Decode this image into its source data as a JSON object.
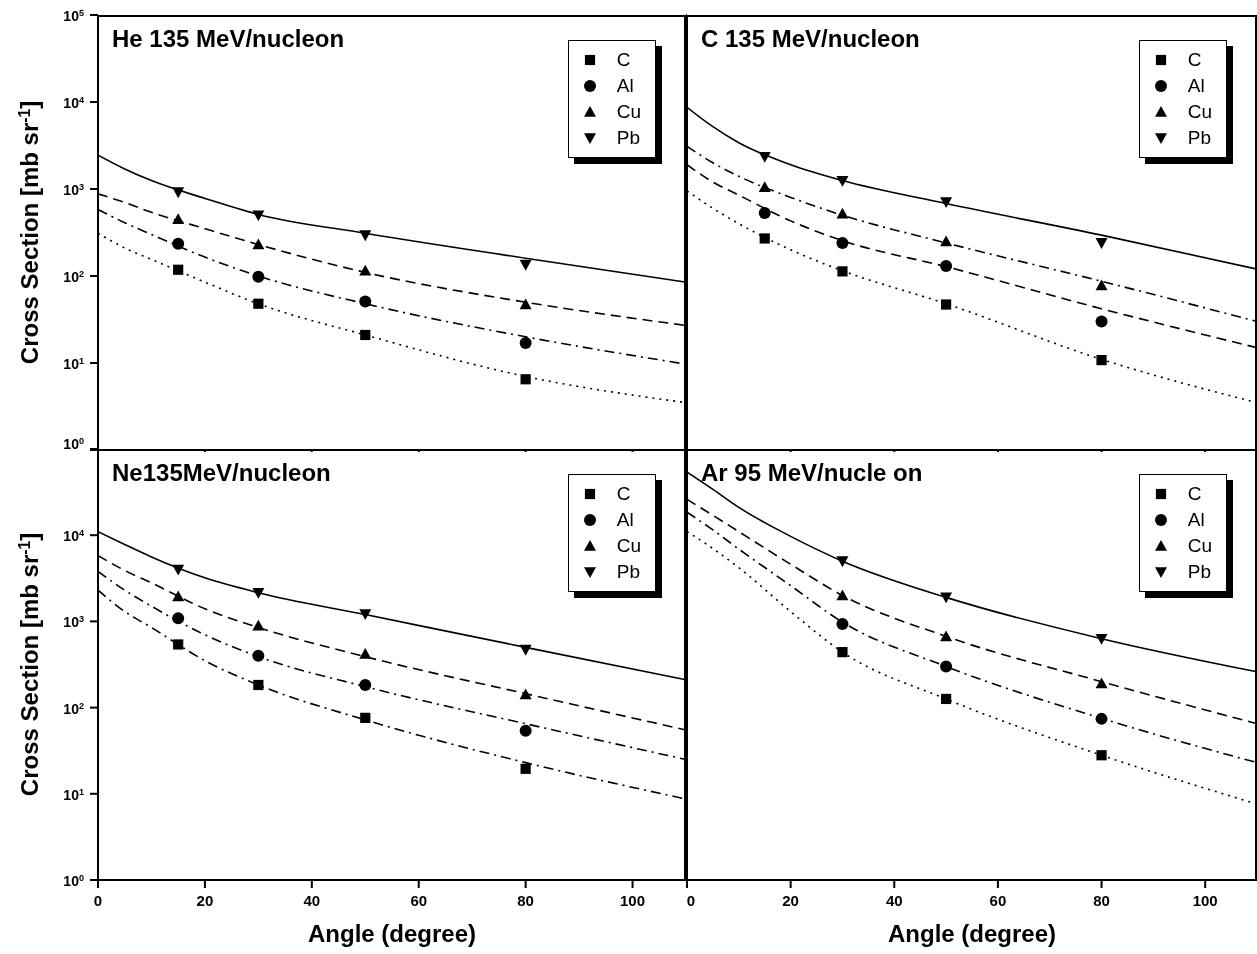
{
  "chart_data": [
    {
      "type": "scatter",
      "title": "He 135 MeV/nucleon",
      "ylabel": "Cross Section [mb sr$^{-1}$]",
      "log": "y",
      "legend": "top right",
      "tick_labels": "y",
      "xlim": [
        0,
        110
      ],
      "xticks": [
        {
          "value": 0,
          "label": null
        },
        {
          "value": 20,
          "label": null
        },
        {
          "value": 40,
          "label": null
        },
        {
          "value": 60,
          "label": null
        },
        {
          "value": 80,
          "label": null
        },
        {
          "value": 100,
          "label": null
        }
      ],
      "ylim": [
        1,
        100000
      ],
      "yticks": [
        {
          "value": 1,
          "label": "10$^{0}$"
        },
        {
          "value": 10,
          "label": "10$^{1}$"
        },
        {
          "value": 100,
          "label": "10$^{2}$"
        },
        {
          "value": 1000,
          "label": "10$^{3}$"
        },
        {
          "value": 10000,
          "label": "10$^{4}$"
        },
        {
          "value": 100000,
          "label": "10$^{5}$"
        }
      ],
      "series": [
        {
          "name": "C",
          "color": "#000000",
          "marker": "square",
          "x": [
            15,
            30,
            50,
            80
          ],
          "values": [
            118,
            48,
            21,
            6.5
          ]
        },
        {
          "name": "Al",
          "color": "#000000",
          "marker": "circle",
          "x": [
            15,
            30,
            50,
            80
          ],
          "values": [
            235,
            98,
            51,
            17
          ]
        },
        {
          "name": "Cu",
          "color": "#000000",
          "marker": "triangle",
          "x": [
            15,
            30,
            50,
            80
          ],
          "values": [
            450,
            230,
            115,
            47
          ]
        },
        {
          "name": "Pb",
          "color": "#000000",
          "marker": "triangle-down",
          "x": [
            15,
            30,
            50,
            80
          ],
          "values": [
            920,
            500,
            295,
            135
          ]
        },
        {
          "type": "line",
          "color": "#000000",
          "marker": "none",
          "line_style": "dotted",
          "x": [
            0,
            5,
            10,
            20,
            30,
            50,
            80,
            110
          ],
          "values": [
            310,
            210,
            155,
            85,
            48,
            21,
            7,
            3.5
          ]
        },
        {
          "type": "line",
          "color": "#000000",
          "marker": "none",
          "line_style": "dashdot",
          "x": [
            0,
            5,
            10,
            20,
            30,
            50,
            80,
            110
          ],
          "values": [
            580,
            410,
            300,
            165,
            100,
            48,
            20,
            9.7
          ]
        },
        {
          "type": "line",
          "color": "#000000",
          "marker": "none",
          "line_style": "dashed",
          "x": [
            0,
            5,
            10,
            20,
            30,
            50,
            80,
            110
          ],
          "values": [
            880,
            700,
            540,
            350,
            230,
            110,
            50,
            27
          ]
        },
        {
          "type": "line",
          "color": "#000000",
          "marker": "none",
          "line_style": "solid",
          "x": [
            0,
            5,
            10,
            20,
            30,
            50,
            80,
            110
          ],
          "values": [
            2450,
            1700,
            1250,
            780,
            510,
            310,
            160,
            85
          ]
        }
      ]
    },
    {
      "type": "scatter",
      "title": "C 135 MeV/nucleon",
      "log": "y",
      "legend": "top right",
      "tick_labels": false,
      "xlim": [
        0,
        110
      ],
      "xticks": [
        {
          "value": 0,
          "label": null
        },
        {
          "value": 20,
          "label": null
        },
        {
          "value": 40,
          "label": null
        },
        {
          "value": 60,
          "label": null
        },
        {
          "value": 80,
          "label": null
        },
        {
          "value": 100,
          "label": null
        }
      ],
      "ylim": [
        1,
        100000
      ],
      "yticks": [
        {
          "value": 1,
          "label": null
        },
        {
          "value": 10,
          "label": null
        },
        {
          "value": 100,
          "label": null
        },
        {
          "value": 1000,
          "label": null
        },
        {
          "value": 10000,
          "label": null
        },
        {
          "value": 100000,
          "label": null
        }
      ],
      "series": [
        {
          "name": "C",
          "color": "#000000",
          "marker": "square",
          "x": [
            15,
            30,
            50,
            80
          ],
          "values": [
            270,
            113,
            47,
            10.8
          ]
        },
        {
          "name": "Al",
          "color": "#000000",
          "marker": "circle",
          "x": [
            15,
            30,
            50,
            80
          ],
          "values": [
            530,
            240,
            130,
            30
          ]
        },
        {
          "name": "Cu",
          "color": "#000000",
          "marker": "triangle",
          "x": [
            15,
            30,
            50,
            80
          ],
          "values": [
            1050,
            520,
            250,
            78
          ]
        },
        {
          "name": "Pb",
          "color": "#000000",
          "marker": "triangle-down",
          "x": [
            15,
            30,
            50,
            80
          ],
          "values": [
            2350,
            1240,
            710,
            240
          ]
        },
        {
          "type": "line",
          "color": "#000000",
          "marker": "none",
          "line_style": "dotted",
          "x": [
            0,
            5,
            10,
            20,
            30,
            50,
            80,
            110
          ],
          "values": [
            950,
            600,
            400,
            200,
            115,
            48,
            11,
            3.5
          ]
        },
        {
          "type": "line",
          "color": "#000000",
          "marker": "none",
          "line_style": "dashed",
          "x": [
            0,
            5,
            10,
            20,
            30,
            50,
            80,
            110
          ],
          "values": [
            1900,
            1200,
            850,
            430,
            255,
            128,
            42,
            15
          ]
        },
        {
          "type": "line",
          "color": "#000000",
          "marker": "none",
          "line_style": "dashdot",
          "x": [
            0,
            5,
            10,
            20,
            30,
            50,
            80,
            110
          ],
          "values": [
            3100,
            2000,
            1400,
            800,
            500,
            240,
            87,
            30
          ]
        },
        {
          "type": "line",
          "color": "#000000",
          "marker": "none",
          "line_style": "solid",
          "x": [
            0,
            5,
            10,
            20,
            30,
            50,
            80,
            110
          ],
          "values": [
            8700,
            5200,
            3400,
            1900,
            1250,
            680,
            295,
            120
          ]
        }
      ]
    },
    {
      "type": "scatter",
      "title": "Ne135MeV/nucleon",
      "xlabel": "Angle (degree)",
      "ylabel": "Cross Section [mb sr$^{-1}$]",
      "log": "y",
      "legend": "top right",
      "xlim": [
        0,
        110
      ],
      "xticks": [
        0,
        20,
        40,
        60,
        80,
        100
      ],
      "ylim": [
        1,
        100000
      ],
      "yticks": [
        {
          "value": 1,
          "label": "10$^{0}$"
        },
        {
          "value": 10,
          "label": "10$^{1}$"
        },
        {
          "value": 100,
          "label": "10$^{2}$"
        },
        {
          "value": 1000,
          "label": "10$^{3}$"
        },
        {
          "value": 10000,
          "label": "10$^{4}$"
        },
        {
          "value": 100000,
          "label": null
        }
      ],
      "series": [
        {
          "name": "C",
          "color": "#000000",
          "marker": "square",
          "x": [
            15,
            30,
            50,
            80
          ],
          "values": [
            540,
            183,
            76,
            19.5
          ]
        },
        {
          "name": "Al",
          "color": "#000000",
          "marker": "circle",
          "x": [
            15,
            30,
            50,
            80
          ],
          "values": [
            1090,
            400,
            183,
            54
          ]
        },
        {
          "name": "Cu",
          "color": "#000000",
          "marker": "triangle",
          "x": [
            15,
            30,
            50,
            80
          ],
          "values": [
            1950,
            890,
            420,
            142
          ]
        },
        {
          "name": "Pb",
          "color": "#000000",
          "marker": "triangle-down",
          "x": [
            15,
            30,
            50,
            80
          ],
          "values": [
            4000,
            2150,
            1220,
            470
          ]
        },
        {
          "type": "line",
          "color": "#000000",
          "marker": "none",
          "line_style": "dashdot",
          "x": [
            0,
            5,
            10,
            20,
            30,
            50,
            80,
            110
          ],
          "values": [
            2300,
            1300,
            850,
            350,
            183,
            72,
            23,
            8.7
          ]
        },
        {
          "type": "line",
          "color": "#000000",
          "marker": "none",
          "line_style": "dashdot",
          "x": [
            0,
            5,
            10,
            20,
            30,
            50,
            80,
            110
          ],
          "values": [
            3800,
            2300,
            1500,
            700,
            390,
            175,
            65,
            25
          ]
        },
        {
          "type": "line",
          "color": "#000000",
          "marker": "none",
          "line_style": "dashed",
          "x": [
            0,
            5,
            10,
            20,
            30,
            50,
            80,
            110
          ],
          "values": [
            5800,
            3900,
            2800,
            1400,
            850,
            390,
            145,
            55
          ]
        },
        {
          "type": "line",
          "color": "#000000",
          "marker": "none",
          "line_style": "solid",
          "x": [
            0,
            5,
            10,
            20,
            30,
            50,
            80,
            110
          ],
          "values": [
            11000,
            7800,
            5600,
            3200,
            2150,
            1200,
            500,
            210
          ]
        }
      ]
    },
    {
      "type": "scatter",
      "title": "Ar 95 MeV/nucle on",
      "xlabel": "Angle (degree)",
      "log": "y",
      "legend": "top right",
      "tick_labels": "x",
      "xlim": [
        0,
        110
      ],
      "xticks": [
        0,
        20,
        40,
        60,
        80,
        100
      ],
      "ylim": [
        1,
        100000
      ],
      "yticks": [
        {
          "value": 1,
          "label": null
        },
        {
          "value": 10,
          "label": null
        },
        {
          "value": 100,
          "label": null
        },
        {
          "value": 1000,
          "label": null
        },
        {
          "value": 10000,
          "label": null
        },
        {
          "value": 100000,
          "label": null
        }
      ],
      "series": [
        {
          "name": "C",
          "color": "#000000",
          "marker": "square",
          "x": [
            30,
            50,
            80
          ],
          "values": [
            440,
            126,
            28
          ]
        },
        {
          "name": "Al",
          "color": "#000000",
          "marker": "circle",
          "x": [
            30,
            50,
            80
          ],
          "values": [
            930,
            300,
            74
          ]
        },
        {
          "name": "Cu",
          "color": "#000000",
          "marker": "triangle",
          "x": [
            30,
            50,
            80
          ],
          "values": [
            2000,
            670,
            190
          ]
        },
        {
          "name": "Pb",
          "color": "#000000",
          "marker": "triangle-down",
          "x": [
            30,
            50,
            80
          ],
          "values": [
            5000,
            1900,
            630
          ]
        },
        {
          "type": "line",
          "color": "#000000",
          "marker": "none",
          "line_style": "dotted",
          "x": [
            0,
            5,
            10,
            20,
            30,
            50,
            80,
            110
          ],
          "values": [
            11000,
            7000,
            4200,
            1300,
            440,
            126,
            28,
            7.6
          ]
        },
        {
          "type": "line",
          "color": "#000000",
          "marker": "none",
          "line_style": "dashdot",
          "x": [
            0,
            5,
            10,
            20,
            30,
            50,
            80,
            110
          ],
          "values": [
            18500,
            11500,
            6900,
            2600,
            980,
            300,
            75,
            23
          ]
        },
        {
          "type": "line",
          "color": "#000000",
          "marker": "none",
          "line_style": "dashed",
          "x": [
            0,
            5,
            10,
            20,
            30,
            50,
            80,
            110
          ],
          "values": [
            26000,
            17000,
            11000,
            4600,
            2000,
            670,
            200,
            65
          ]
        },
        {
          "type": "line",
          "color": "#000000",
          "marker": "none",
          "line_style": "solid",
          "x": [
            0,
            5,
            10,
            20,
            30,
            50,
            80,
            110
          ],
          "values": [
            54000,
            34000,
            21000,
            9700,
            5000,
            1900,
            630,
            260
          ]
        }
      ]
    }
  ]
}
